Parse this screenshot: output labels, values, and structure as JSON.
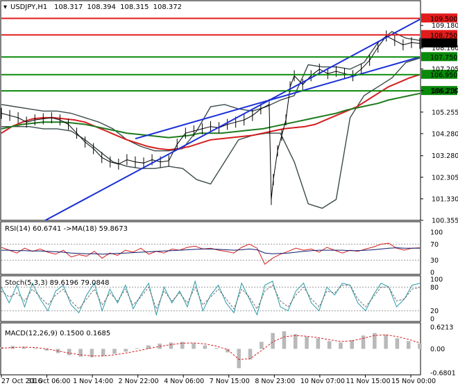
{
  "chart_data": {
    "type": "line",
    "symbol": "USDJPY,H1",
    "ohlc": [
      "108.317",
      "108.394",
      "108.315",
      "108.372"
    ],
    "current_price": "108.372",
    "price_axis": {
      "ylim": [
        100.355,
        109.765
      ],
      "ticks": [
        "109.180",
        "108.160",
        "107.205",
        "106.230",
        "105.255",
        "104.280",
        "103.280",
        "102.305",
        "101.330",
        "100.355"
      ]
    },
    "horizontal_levels": [
      {
        "value": 109.5,
        "label": "109.500",
        "color": "#e21b1b"
      },
      {
        "value": 108.75,
        "label": "108.750",
        "color": "#e21b1b"
      },
      {
        "value": 107.75,
        "label": "107.750",
        "color": "#0a8a0a"
      },
      {
        "value": 106.95,
        "label": "106.950",
        "color": "#0a8a0a"
      },
      {
        "value": 106.216,
        "label": "106.216",
        "color": "#0a8a0a"
      }
    ],
    "channel_lines": [
      {
        "from": [
          0.105,
          100.355
        ],
        "to": [
          1.0,
          109.45
        ],
        "color": "#1a2ed8"
      },
      {
        "from": [
          0.32,
          104.05
        ],
        "to": [
          1.0,
          107.75
        ],
        "color": "#1a2ed8"
      }
    ],
    "price_series": {
      "x": [
        0,
        0.02,
        0.04,
        0.06,
        0.08,
        0.1,
        0.12,
        0.14,
        0.16,
        0.18,
        0.2,
        0.22,
        0.24,
        0.26,
        0.28,
        0.3,
        0.32,
        0.34,
        0.36,
        0.38,
        0.4,
        0.42,
        0.44,
        0.46,
        0.48,
        0.5,
        0.52,
        0.54,
        0.56,
        0.58,
        0.6,
        0.62,
        0.64,
        0.645,
        0.65,
        0.66,
        0.67,
        0.68,
        0.69,
        0.7,
        0.72,
        0.74,
        0.76,
        0.78,
        0.8,
        0.82,
        0.84,
        0.86,
        0.88,
        0.9,
        0.92,
        0.94,
        0.96,
        0.98,
        1.0
      ],
      "close": [
        105.2,
        105.1,
        105.0,
        104.8,
        104.9,
        104.95,
        105.0,
        104.9,
        104.7,
        104.3,
        103.9,
        103.6,
        103.2,
        103.0,
        102.9,
        103.1,
        103.0,
        102.95,
        103.1,
        103.0,
        103.05,
        103.8,
        104.3,
        104.4,
        104.5,
        104.6,
        104.55,
        104.7,
        104.8,
        104.9,
        105.1,
        105.4,
        105.6,
        101.3,
        102.2,
        103.5,
        104.2,
        104.9,
        106.4,
        106.9,
        106.5,
        106.9,
        107.2,
        107.0,
        107.1,
        107.0,
        106.9,
        107.2,
        107.6,
        108.2,
        108.7,
        108.5,
        108.3,
        108.4,
        108.37
      ]
    },
    "moving_averages": [
      {
        "color": "#d41e1e",
        "y": [
          104.3,
          104.6,
          104.8,
          104.95,
          105.0,
          105.0,
          104.95,
          104.9,
          104.8,
          104.6,
          104.4,
          104.2,
          104.0,
          103.85,
          103.7,
          103.6,
          103.55,
          103.6,
          103.7,
          103.85,
          104.0,
          104.05,
          104.1,
          104.15,
          104.2,
          104.3,
          104.4,
          104.5,
          104.55,
          104.6,
          104.7,
          104.9,
          105.1,
          105.3,
          105.5,
          105.8,
          106.1,
          106.4,
          106.6,
          106.8,
          106.95
        ]
      },
      {
        "color": "#1d7a1d",
        "y": [
          104.5,
          104.6,
          104.7,
          104.75,
          104.8,
          104.8,
          104.8,
          104.75,
          104.7,
          104.6,
          104.5,
          104.4,
          104.3,
          104.25,
          104.2,
          104.15,
          104.1,
          104.15,
          104.2,
          104.3,
          104.3,
          104.3,
          104.35,
          104.4,
          104.45,
          104.5,
          104.6,
          104.7,
          104.8,
          104.9,
          105.0,
          105.1,
          105.2,
          105.35,
          105.45,
          105.55,
          105.65,
          105.8,
          105.9,
          106.0,
          106.1
        ]
      }
    ],
    "bollinger": {
      "upper": [
        105.6,
        105.5,
        105.4,
        105.3,
        105.3,
        105.2,
        105.0,
        104.8,
        104.5,
        104.0,
        103.7,
        103.5,
        103.5,
        103.6,
        104.4,
        105.5,
        105.6,
        105.4,
        105.3,
        105.5,
        105.8,
        106.0,
        107.4,
        107.3,
        107.3,
        107.2,
        107.5,
        108.4,
        108.9,
        108.6,
        108.5
      ],
      "lower": [
        104.6,
        104.6,
        104.6,
        104.5,
        104.5,
        104.4,
        104.0,
        103.5,
        103.0,
        102.8,
        102.7,
        102.7,
        102.8,
        102.7,
        102.2,
        102.0,
        103.0,
        104.0,
        104.2,
        104.3,
        104.3,
        103.0,
        101.1,
        100.9,
        101.3,
        105.0,
        106.0,
        106.4,
        106.8,
        107.5,
        107.7
      ]
    },
    "rsi": {
      "label": "RSI(14) 60.6741 ->MA(18) 59.8673",
      "ylim": [
        0,
        100
      ],
      "ticks": [
        "100",
        "70",
        "30",
        "0"
      ],
      "values": [
        62,
        55,
        48,
        60,
        52,
        58,
        50,
        45,
        55,
        38,
        44,
        40,
        52,
        35,
        48,
        42,
        55,
        50,
        60,
        45,
        52,
        48,
        58,
        55,
        62,
        65,
        58,
        60,
        55,
        52,
        48,
        62,
        70,
        60,
        20,
        35,
        45,
        52,
        60,
        55,
        58,
        50,
        62,
        55,
        48,
        55,
        52,
        58,
        63,
        70,
        72,
        60,
        55,
        60,
        61
      ],
      "ma_values": [
        55,
        55,
        54,
        54,
        53,
        53,
        52,
        51,
        50,
        48,
        47,
        46,
        46,
        45,
        46,
        47,
        48,
        49,
        50,
        51,
        52,
        53,
        54,
        55,
        56,
        57,
        58,
        58,
        57,
        56,
        55,
        56,
        58,
        56,
        48,
        46,
        47,
        48,
        50,
        52,
        54,
        55,
        55,
        55,
        55,
        54,
        54,
        55,
        56,
        58,
        60,
        61,
        60,
        60,
        60
      ]
    },
    "stoch": {
      "label": "Stoch(5,3,3) 89.6196 79.0848",
      "ylim": [
        0,
        100
      ],
      "ticks": [
        "100",
        "80",
        "20",
        "0"
      ],
      "k_values": [
        80,
        40,
        85,
        30,
        90,
        50,
        20,
        70,
        85,
        35,
        15,
        60,
        90,
        20,
        75,
        40,
        85,
        25,
        60,
        90,
        10,
        80,
        40,
        70,
        30,
        95,
        20,
        60,
        85,
        40,
        15,
        90,
        50,
        10,
        85,
        95,
        30,
        20,
        70,
        90,
        40,
        20,
        80,
        60,
        90,
        85,
        40,
        20,
        60,
        90,
        80,
        30,
        50,
        85,
        89.6
      ],
      "d_values": [
        70,
        55,
        65,
        45,
        75,
        55,
        35,
        60,
        75,
        45,
        25,
        50,
        75,
        35,
        65,
        45,
        75,
        35,
        55,
        80,
        25,
        70,
        45,
        65,
        40,
        80,
        35,
        55,
        75,
        50,
        25,
        75,
        55,
        25,
        70,
        85,
        45,
        30,
        60,
        80,
        50,
        30,
        70,
        65,
        85,
        85,
        50,
        30,
        55,
        80,
        80,
        45,
        50,
        75,
        79.1
      ]
    },
    "macd": {
      "label": "MACD(12,26,9) 0.1500 0.1685",
      "ylim": [
        -0.6801,
        0.6213
      ],
      "ticks": [
        "0.6213",
        "0.00",
        "-0.6801"
      ],
      "histogram": [
        0.05,
        0.08,
        0.06,
        0.02,
        -0.05,
        -0.12,
        -0.18,
        -0.22,
        -0.24,
        -0.2,
        -0.14,
        -0.08,
        0.02,
        0.1,
        0.15,
        0.18,
        0.2,
        0.16,
        0.1,
        0.02,
        -0.1,
        -0.55,
        -0.3,
        0.2,
        0.45,
        0.5,
        0.42,
        0.35,
        0.3,
        0.22,
        0.18,
        0.25,
        0.38,
        0.45,
        0.4,
        0.3,
        0.22,
        0.15
      ],
      "signal": [
        0.02,
        0.04,
        0.05,
        0.04,
        0.0,
        -0.06,
        -0.12,
        -0.17,
        -0.2,
        -0.2,
        -0.17,
        -0.12,
        -0.06,
        0.01,
        0.07,
        0.12,
        0.16,
        0.17,
        0.14,
        0.08,
        -0.02,
        -0.3,
        -0.28,
        -0.05,
        0.2,
        0.34,
        0.38,
        0.36,
        0.32,
        0.26,
        0.21,
        0.23,
        0.3,
        0.38,
        0.4,
        0.35,
        0.27,
        0.17
      ]
    },
    "x_axis": {
      "ticks": [
        "27 Oct 2016",
        "31 Oct 06:00",
        "1 Nov 14:00",
        "2 Nov 22:00",
        "4 Nov 06:00",
        "7 Nov 15:00",
        "8 Nov 23:00",
        "10 Nov 07:00",
        "11 Nov 15:00",
        "15 Nov 00:00"
      ]
    }
  }
}
